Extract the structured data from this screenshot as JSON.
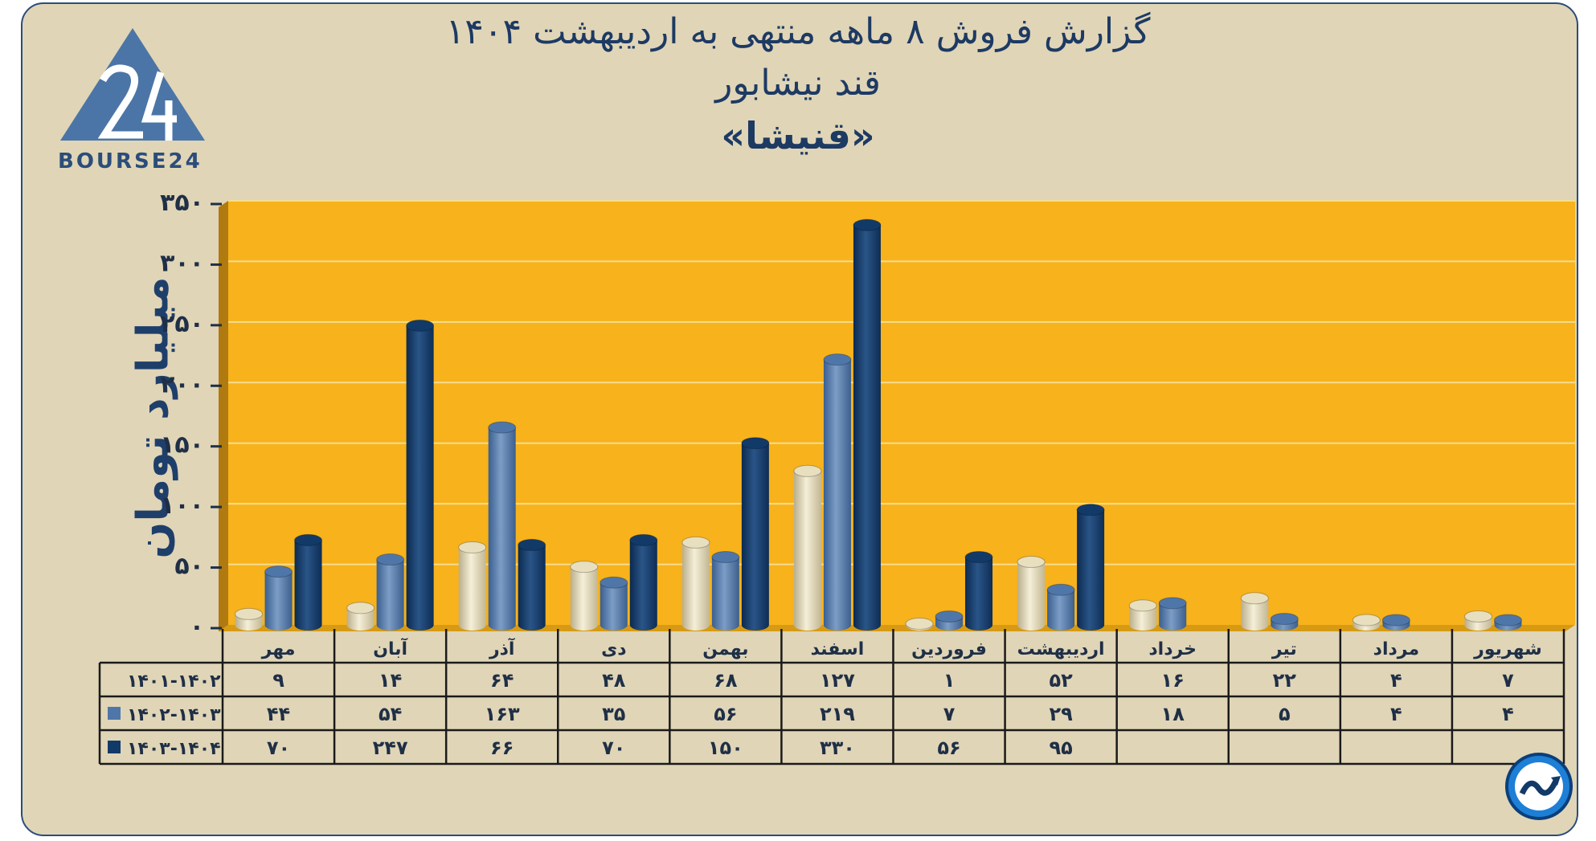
{
  "header": {
    "title_line1": "گزارش  فروش ۸ ماهه منتهی به اردیبهشت ۱۴۰۴",
    "title_line2": "قند نیشابور",
    "title_line3": "«قنیشا»"
  },
  "logo": {
    "text": "BOURSE24",
    "mark": "24"
  },
  "badge": {
    "icon": "chart-arrow-icon"
  },
  "chart_data": {
    "type": "bar",
    "title": "گزارش  فروش ۸ ماهه منتهی به اردیبهشت ۱۴۰۴",
    "subtitle": "قند نیشابور «قنیشا»",
    "ylabel": "میلیارد تومان",
    "xlabel": "",
    "ylim": [
      0,
      350
    ],
    "yticks": [
      0,
      50,
      100,
      150,
      200,
      250,
      300,
      350
    ],
    "ytick_labels": [
      "۰",
      "۵۰",
      "۱۰۰",
      "۱۵۰",
      "۲۰۰",
      "۲۵۰",
      "۳۰۰",
      "۳۵۰"
    ],
    "categories": [
      "مهر",
      "آبان",
      "آذر",
      "دی",
      "بهمن",
      "اسفند",
      "فروردین",
      "اردیبهشت",
      "خرداد",
      "تیر",
      "مرداد",
      "شهریور"
    ],
    "series": [
      {
        "name": "۱۴۰۱-۱۴۰۲",
        "color": "#e8dfbf",
        "values": [
          9,
          14,
          64,
          48,
          68,
          127,
          1,
          52,
          16,
          22,
          4,
          7
        ],
        "labels": [
          "۹",
          "۱۴",
          "۶۴",
          "۴۸",
          "۶۸",
          "۱۲۷",
          "۱",
          "۵۲",
          "۱۶",
          "۲۲",
          "۴",
          "۷"
        ]
      },
      {
        "name": "۱۴۰۲-۱۴۰۳",
        "color": "#4f76a8",
        "values": [
          44,
          54,
          163,
          35,
          56,
          219,
          7,
          29,
          18,
          5,
          4,
          4
        ],
        "labels": [
          "۴۴",
          "۵۴",
          "۱۶۳",
          "۳۵",
          "۵۶",
          "۲۱۹",
          "۷",
          "۲۹",
          "۱۸",
          "۵",
          "۴",
          "۴"
        ]
      },
      {
        "name": "۱۴۰۳-۱۴۰۴",
        "color": "#123a68",
        "values": [
          70,
          247,
          66,
          70,
          150,
          330,
          56,
          95,
          null,
          null,
          null,
          null
        ],
        "labels": [
          "۷۰",
          "۲۴۷",
          "۶۶",
          "۷۰",
          "۱۵۰",
          "۳۳۰",
          "۵۶",
          "۹۵",
          "",
          "",
          "",
          ""
        ]
      }
    ],
    "legend": "bottom-left table",
    "grid": true,
    "plot_background": "#f7b21c"
  }
}
